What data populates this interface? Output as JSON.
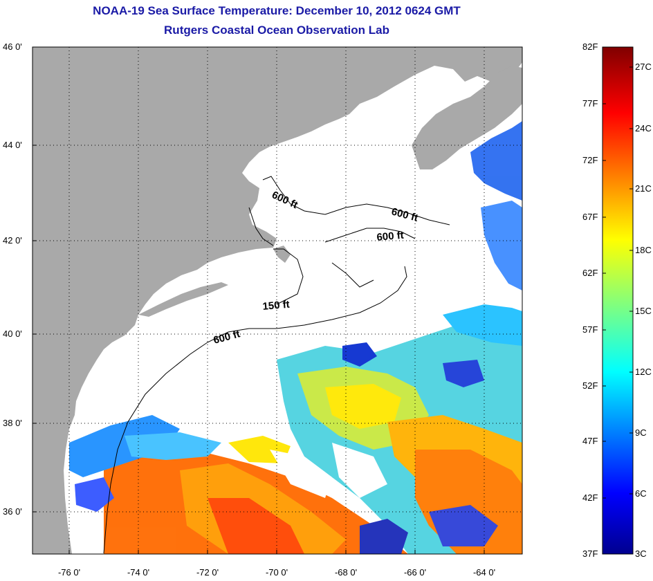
{
  "title_line1": "NOAA-19 Sea Surface Temperature:  December 10, 2012 0624 GMT",
  "title_line2": "Rutgers Coastal Ocean Observation Lab",
  "lat_labels": [
    "46 0'",
    "44 0'",
    "42 0'",
    "40 0'",
    "38 0'",
    "36 0'"
  ],
  "lon_labels": [
    "-76 0'",
    "-74 0'",
    "-72 0'",
    "-70 0'",
    "-68 0'",
    "-66 0'",
    "-64 0'"
  ],
  "contours": [
    "600 ft",
    "600 ft",
    "600 ft",
    "150 ft",
    "600 ft"
  ],
  "colorbar": {
    "f_labels": [
      "82F",
      "77F",
      "72F",
      "67F",
      "62F",
      "57F",
      "52F",
      "47F",
      "42F",
      "37F"
    ],
    "c_labels": [
      "27C",
      "24C",
      "21C",
      "18C",
      "15C",
      "12C",
      "9C",
      "6C",
      "3C"
    ]
  },
  "colors": {
    "land": "#a9a9a9",
    "title": "#1a1aa6"
  }
}
